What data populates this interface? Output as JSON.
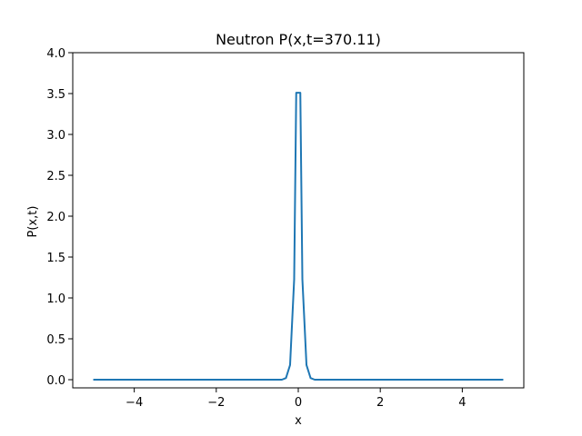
{
  "chart_data": {
    "type": "line",
    "title": "Neutron P(x,t=370.11)",
    "xlabel": "x",
    "ylabel": "P(x,t)",
    "xlim": [
      -5.5,
      5.5
    ],
    "ylim": [
      -0.1,
      4.0
    ],
    "xticks": [
      -4,
      -2,
      0,
      2,
      4
    ],
    "xtick_labels": [
      "−4",
      "−2",
      "0",
      "2",
      "4"
    ],
    "yticks": [
      0.0,
      0.5,
      1.0,
      1.5,
      2.0,
      2.5,
      3.0,
      3.5,
      4.0
    ],
    "ytick_labels": [
      "0.0",
      "0.5",
      "1.0",
      "1.5",
      "2.0",
      "2.5",
      "3.0",
      "3.5",
      "4.0"
    ],
    "grid": false,
    "line_color": "#1f77b4",
    "series": [
      {
        "x": [
          -5.0,
          -0.4,
          -0.3,
          -0.2,
          -0.1,
          -0.05,
          0.05,
          0.1,
          0.2,
          0.3,
          0.4,
          5.0
        ],
        "y": [
          0.0,
          0.0,
          0.02,
          0.18,
          1.23,
          3.51,
          3.51,
          1.23,
          0.18,
          0.02,
          0.0,
          0.0
        ]
      }
    ]
  }
}
